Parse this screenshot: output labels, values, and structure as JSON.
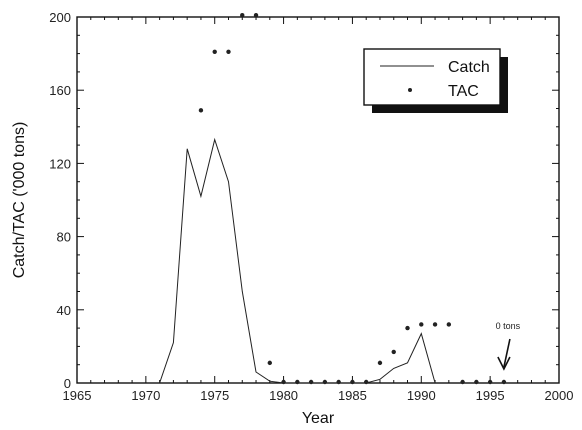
{
  "chart_data": {
    "type": "line",
    "title": "",
    "xlabel": "Year",
    "ylabel": "Catch/TAC ('000 tons)",
    "xlim": [
      1965,
      2000
    ],
    "ylim": [
      0,
      200
    ],
    "x_ticks": [
      1965,
      1970,
      1975,
      1980,
      1985,
      1990,
      1995,
      2000
    ],
    "y_ticks": [
      0,
      40,
      80,
      120,
      160,
      200
    ],
    "grid": false,
    "legend_position": "top-right",
    "series": [
      {
        "name": "Catch",
        "style": "line",
        "color": "#222222",
        "points": [
          {
            "x": 1971,
            "y": 0
          },
          {
            "x": 1972,
            "y": 22
          },
          {
            "x": 1973,
            "y": 128
          },
          {
            "x": 1974,
            "y": 102
          },
          {
            "x": 1975,
            "y": 133
          },
          {
            "x": 1976,
            "y": 110
          },
          {
            "x": 1977,
            "y": 50
          },
          {
            "x": 1978,
            "y": 6
          },
          {
            "x": 1979,
            "y": 1
          },
          {
            "x": 1980,
            "y": 0
          },
          {
            "x": 1986,
            "y": 0
          },
          {
            "x": 1987,
            "y": 2
          },
          {
            "x": 1988,
            "y": 8
          },
          {
            "x": 1989,
            "y": 11
          },
          {
            "x": 1990,
            "y": 27
          },
          {
            "x": 1991,
            "y": 0
          }
        ]
      },
      {
        "name": "TAC",
        "style": "dots",
        "color": "#222222",
        "points": [
          {
            "x": 1974,
            "y": 149
          },
          {
            "x": 1975,
            "y": 181
          },
          {
            "x": 1976,
            "y": 181
          },
          {
            "x": 1977,
            "y": 201
          },
          {
            "x": 1978,
            "y": 201
          },
          {
            "x": 1979,
            "y": 11
          },
          {
            "x": 1980,
            "y": 0
          },
          {
            "x": 1981,
            "y": 0
          },
          {
            "x": 1982,
            "y": 0
          },
          {
            "x": 1983,
            "y": 0
          },
          {
            "x": 1984,
            "y": 0
          },
          {
            "x": 1985,
            "y": 0
          },
          {
            "x": 1986,
            "y": 0
          },
          {
            "x": 1987,
            "y": 11
          },
          {
            "x": 1988,
            "y": 17
          },
          {
            "x": 1989,
            "y": 30
          },
          {
            "x": 1990,
            "y": 32
          },
          {
            "x": 1991,
            "y": 32
          },
          {
            "x": 1992,
            "y": 32
          },
          {
            "x": 1993,
            "y": 0
          },
          {
            "x": 1994,
            "y": 0
          },
          {
            "x": 1995,
            "y": 0
          },
          {
            "x": 1996,
            "y": 0
          }
        ]
      }
    ],
    "annotations": [
      {
        "text": "0 tons",
        "x": 1996,
        "y": 0,
        "arrow": "down"
      }
    ]
  }
}
